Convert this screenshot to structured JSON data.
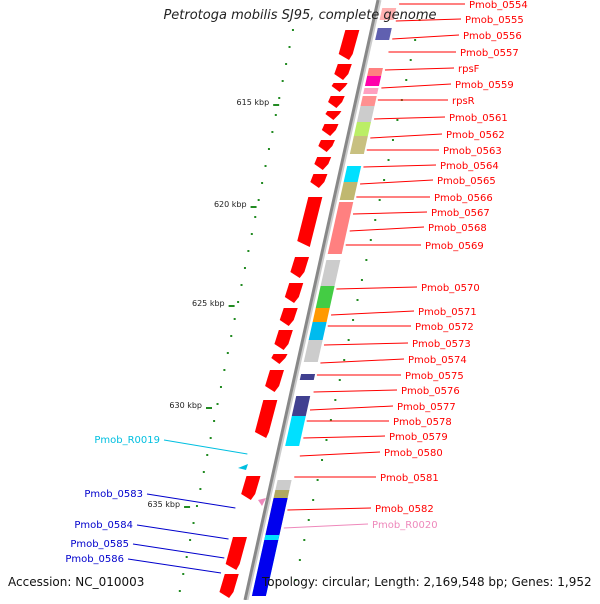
{
  "title": "Petrotoga mobilis SJ95, complete genome",
  "accession": "Accession: NC_010003",
  "topology": "Topology: circular; Length: 2,169,548 bp; Genes: 1,952",
  "colors": {
    "cds": "#ff0000",
    "rrna_label": "#00bfe0",
    "trna_label": "#ee88bb",
    "left_label": "#0000cc",
    "axis": "#888888",
    "tick": "#228b22"
  },
  "kbp_ticks": [
    "615 kbp",
    "620 kbp",
    "625 kbp",
    "630 kbp",
    "635 kbp"
  ],
  "right_labels": [
    "Pmob_0554",
    "Pmob_0555",
    "Pmob_0556",
    "Pmob_0557",
    "rpsF",
    "Pmob_0559",
    "rpsR",
    "Pmob_0561",
    "Pmob_0562",
    "Pmob_0563",
    "Pmob_0564",
    "Pmob_0565",
    "Pmob_0566",
    "Pmob_0567",
    "Pmob_0568",
    "Pmob_0569",
    "Pmob_0570",
    "Pmob_0571",
    "Pmob_0572",
    "Pmob_0573",
    "Pmob_0574",
    "Pmob_0575",
    "Pmob_0576",
    "Pmob_0577",
    "Pmob_0578",
    "Pmob_0579",
    "Pmob_0580",
    "Pmob_0581",
    "Pmob_0582",
    "Pmob_R0020"
  ],
  "left_labels": [
    "Pmob_R0019",
    "Pmob_0583",
    "Pmob_0584",
    "Pmob_0585",
    "Pmob_0586"
  ]
}
